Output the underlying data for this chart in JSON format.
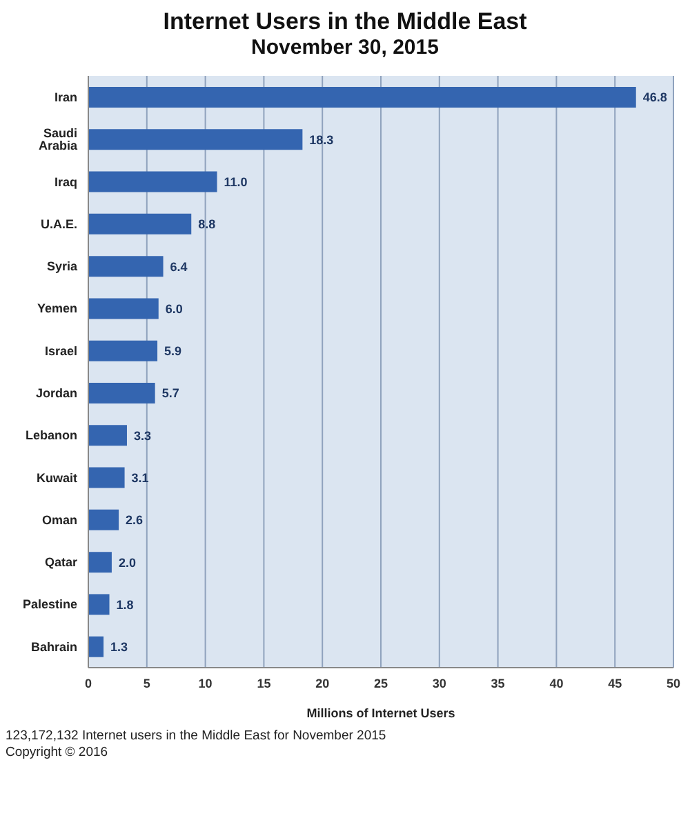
{
  "chart_data": {
    "type": "bar",
    "orientation": "horizontal",
    "title": "Internet Users in the Middle East",
    "subtitle": "November 30, 2015",
    "categories": [
      "Iran",
      "Saudi Arabia",
      "Iraq",
      "U.A.E.",
      "Syria",
      "Yemen",
      "Israel",
      "Jordan",
      "Lebanon",
      "Kuwait",
      "Oman",
      "Qatar",
      "Palestine",
      "Bahrain"
    ],
    "values": [
      46.8,
      18.3,
      11.0,
      8.8,
      6.4,
      6.0,
      5.9,
      5.7,
      3.3,
      3.1,
      2.6,
      2.0,
      1.8,
      1.3
    ],
    "value_labels": [
      "46.8",
      "18.3",
      "11.0",
      "8.8",
      "6.4",
      "6.0",
      "5.9",
      "5.7",
      "3.3",
      "3.1",
      "2.6",
      "2.0",
      "1.8",
      "1.3"
    ],
    "color": "#3465b0",
    "xlim": [
      0,
      50
    ],
    "xticks": [
      0,
      5,
      10,
      15,
      20,
      25,
      30,
      35,
      40,
      45,
      50
    ],
    "xlabel": "Millions of Internet Users",
    "grid": "x",
    "annotations": [
      "123,172,132 Internet users in the Middle East for November 2015",
      "Copyright © 2016"
    ]
  }
}
